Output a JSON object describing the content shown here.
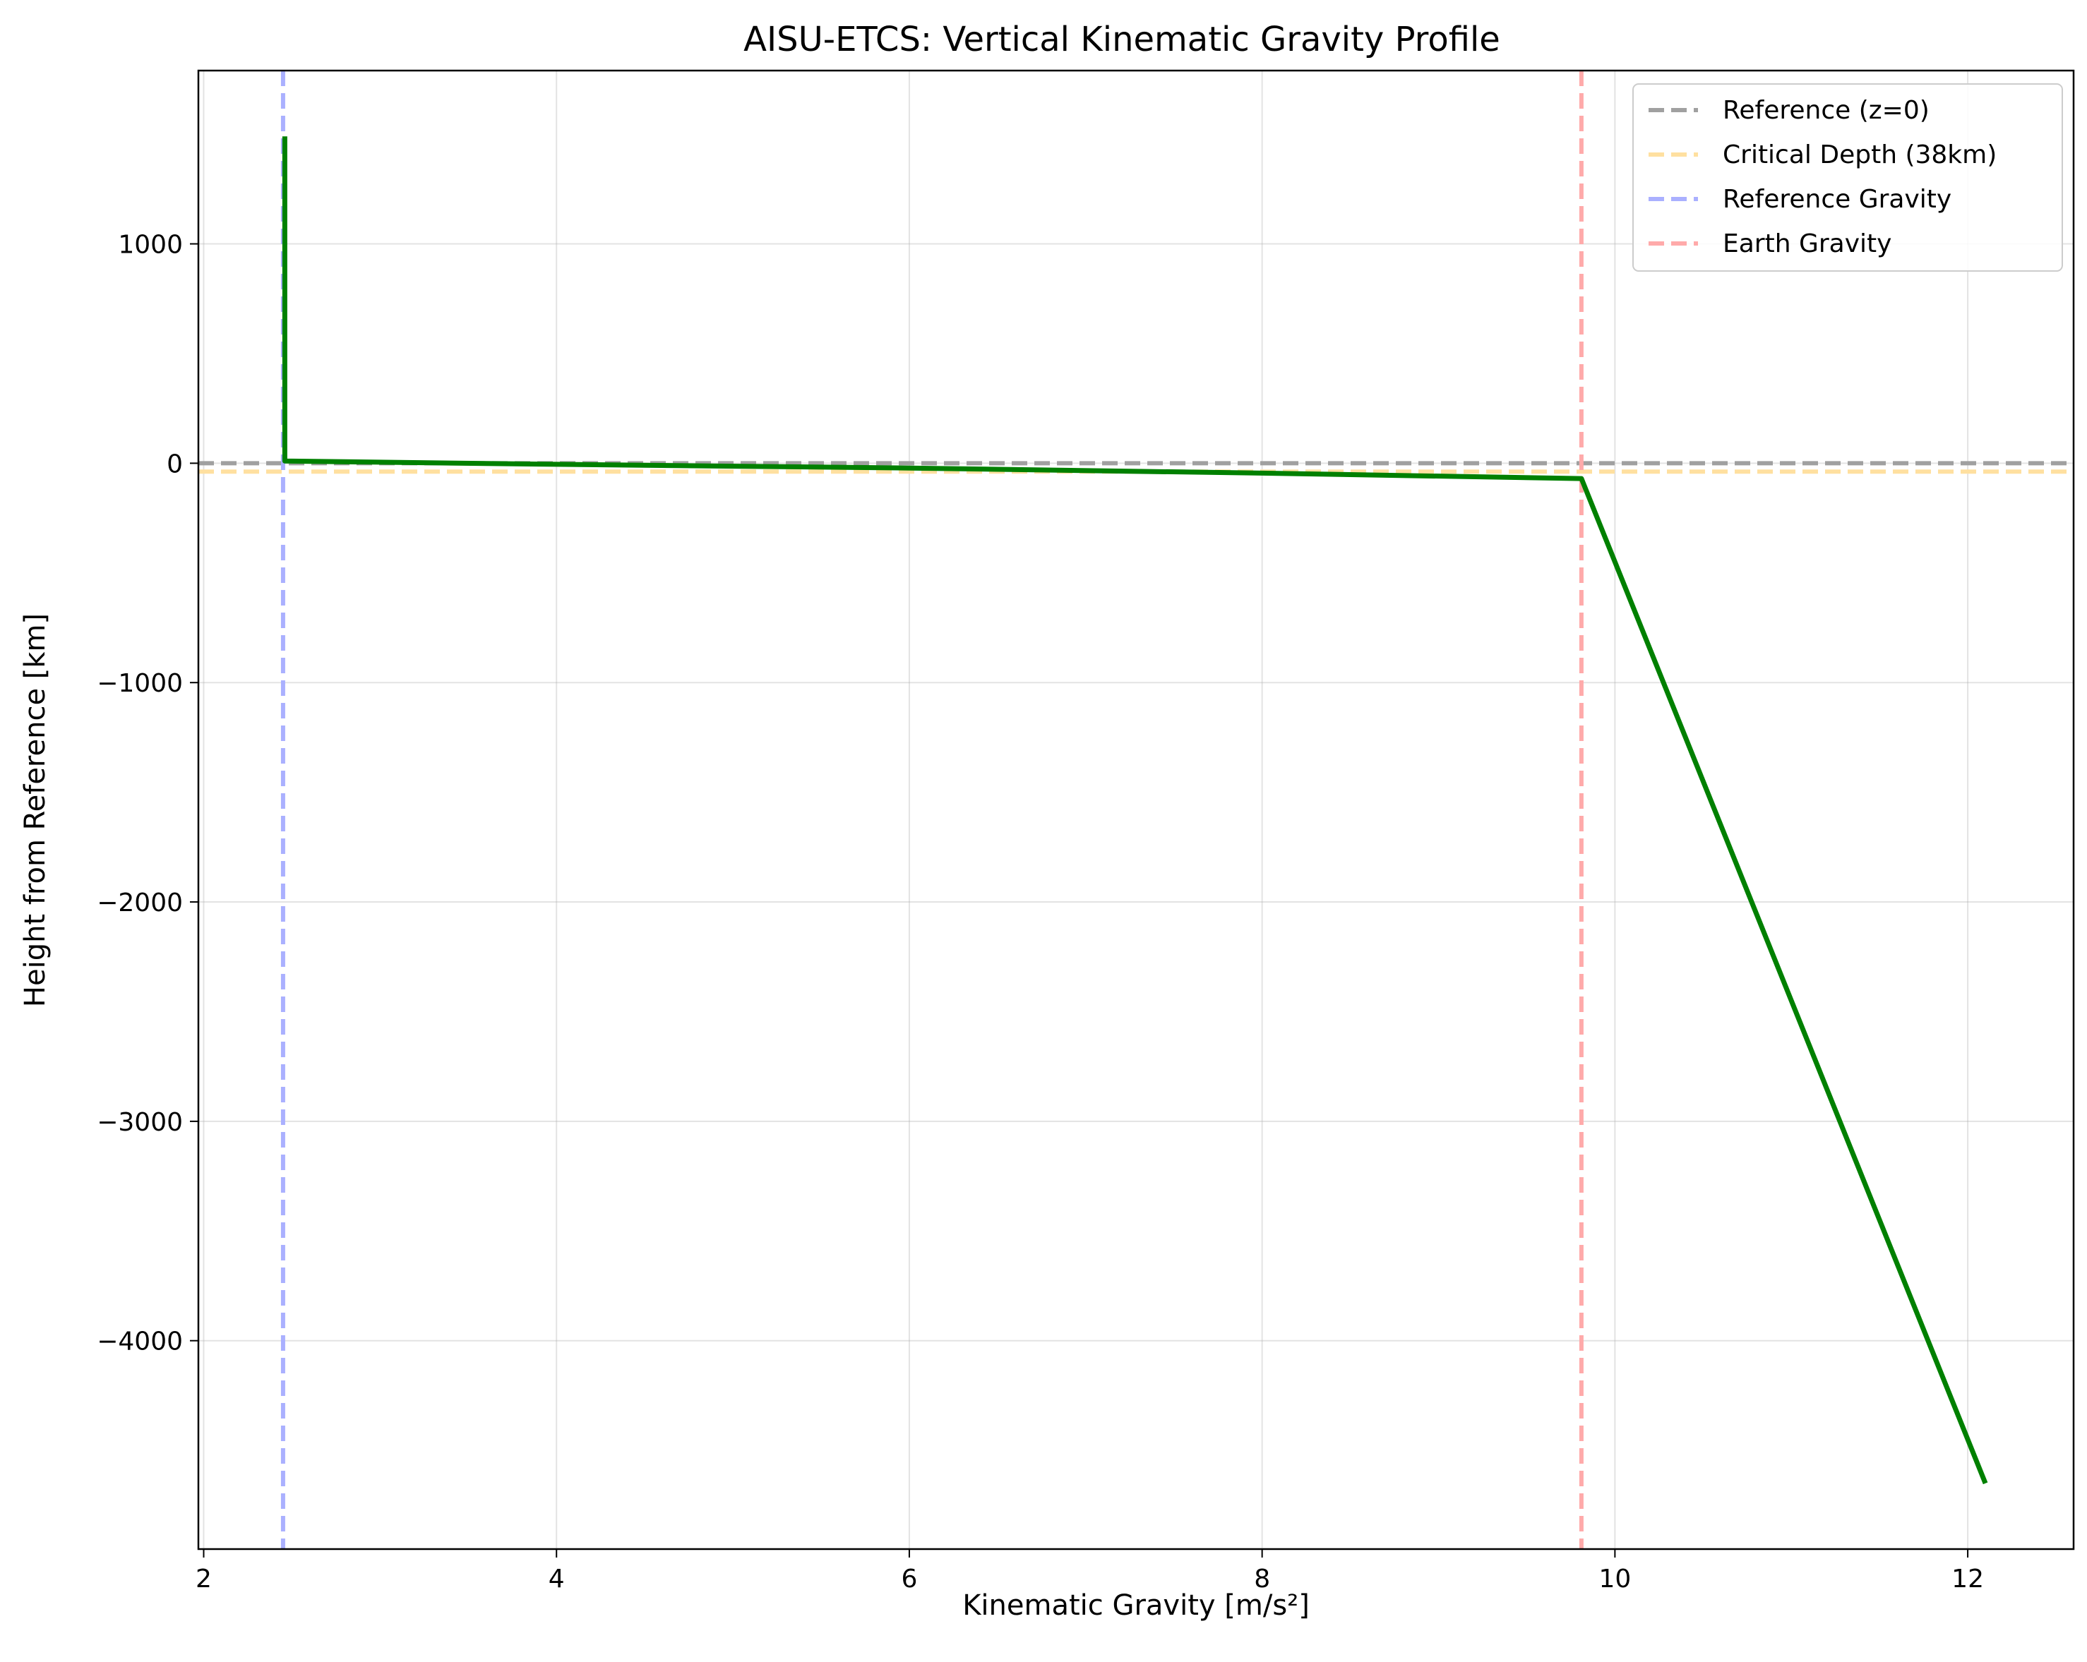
{
  "chart_data": {
    "type": "line",
    "title": "AISU-ETCS: Vertical Kinematic Gravity Profile",
    "xlabel": "Kinematic Gravity [m/s²]",
    "ylabel": "Height from Reference [km]",
    "xlim": [
      1.97,
      12.6
    ],
    "ylim": [
      -4950,
      1790
    ],
    "xticks": [
      2,
      4,
      6,
      8,
      10,
      12
    ],
    "xtick_labels": [
      "2",
      "4",
      "6",
      "8",
      "10",
      "12"
    ],
    "yticks": [
      1000,
      0,
      -1000,
      -2000,
      -3000,
      -4000
    ],
    "ytick_labels": [
      "1000",
      "0",
      "−1000",
      "−2000",
      "−3000",
      "−4000"
    ],
    "grid": true,
    "legend_position": "top-right",
    "series": [
      {
        "color": "#008000",
        "style": "solid",
        "x": [
          2.46,
          2.46,
          2.46,
          4.0,
          6.0,
          8.0,
          9.81,
          12.1
        ],
        "y": [
          1490,
          1000,
          10,
          -5,
          -22,
          -45,
          -70,
          -4650
        ]
      }
    ],
    "reference_lines": [
      {
        "name": "Reference (z=0)",
        "orientation": "horizontal",
        "value": 0,
        "color": "#a0a0a0",
        "style": "dashed"
      },
      {
        "name": "Critical Depth (38km)",
        "orientation": "horizontal",
        "value": -38,
        "color": "#ffe0a0",
        "style": "dashed"
      },
      {
        "name": "Reference Gravity",
        "orientation": "vertical",
        "value": 2.45,
        "color": "#aab0ff",
        "style": "dashed"
      },
      {
        "name": "Earth Gravity",
        "orientation": "vertical",
        "value": 9.81,
        "color": "#ffaaaa",
        "style": "dashed"
      }
    ]
  }
}
